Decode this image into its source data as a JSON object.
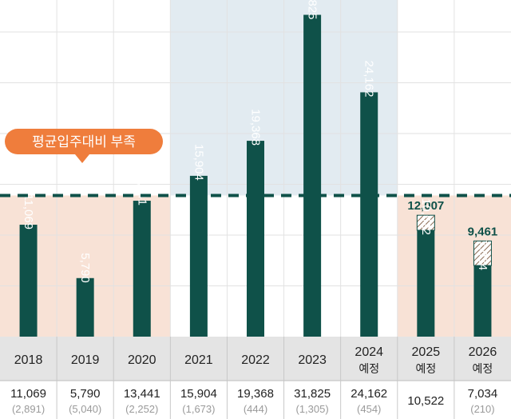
{
  "chart_data": {
    "type": "bar",
    "categories": [
      "2018",
      "2019",
      "2020",
      "2021",
      "2022",
      "2023",
      "2024",
      "2025",
      "2026"
    ],
    "category_sublabels": [
      "",
      "",
      "",
      "",
      "",
      "",
      "예정",
      "예정",
      "예정"
    ],
    "values": [
      11069,
      5790,
      13441,
      15904,
      19368,
      31825,
      24162,
      10522,
      7034
    ],
    "value_labels": [
      "11,069",
      "5,790",
      "13,441",
      "15,904",
      "19,368",
      "31,825",
      "24,162",
      "10,522",
      "7,034"
    ],
    "hatched_totals": [
      null,
      null,
      null,
      null,
      null,
      null,
      null,
      12007,
      9461
    ],
    "hatched_total_labels": [
      "",
      "",
      "",
      "",
      "",
      "",
      "",
      "12,007",
      "9,461"
    ],
    "table_main": [
      "11,069",
      "5,790",
      "13,441",
      "15,904",
      "19,368",
      "31,825",
      "24,162",
      "10,522",
      "7,034"
    ],
    "table_sub": [
      "(2,891)",
      "(5,040)",
      "(2,252)",
      "(1,673)",
      "(444)",
      "(1,305)",
      "(454)",
      "",
      "(210)"
    ],
    "average_line": 13960,
    "annotation": "평균입주대비 부족",
    "ylim": [
      0,
      32500
    ],
    "colors": {
      "bar": "#0f5149",
      "shortage_bg": "#f8e2d6",
      "surplus_bg": "#e2ebf1",
      "callout": "#ef7d3c",
      "header_bg": "#e4e4e4",
      "grid": "#e2e2e2"
    }
  }
}
